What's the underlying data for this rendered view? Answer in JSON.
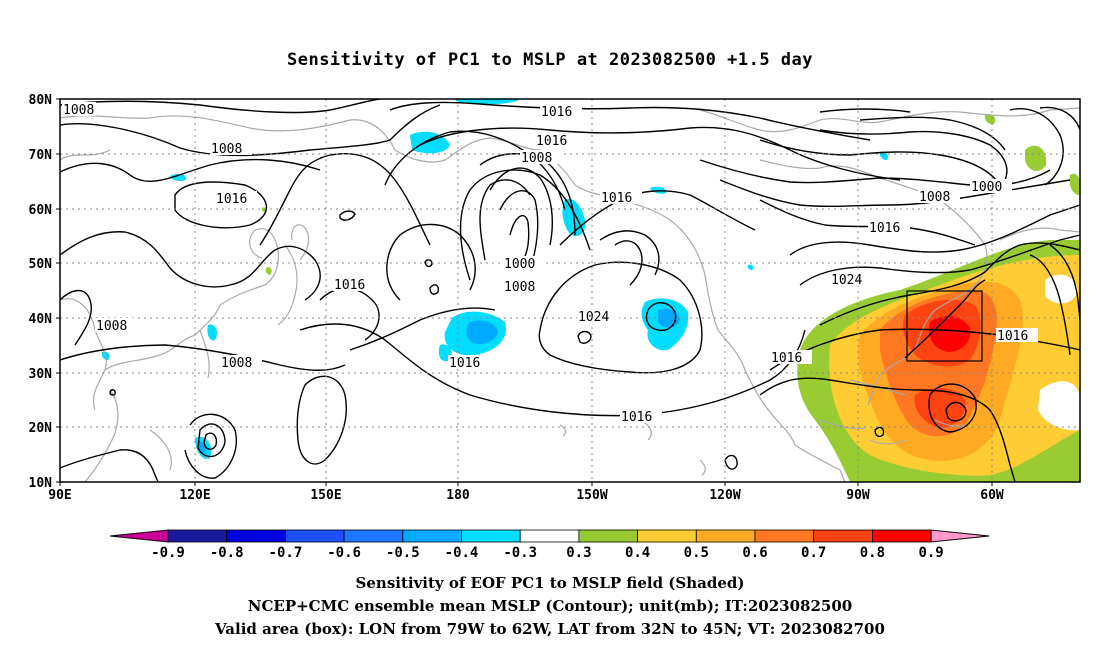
{
  "title": "Sensitivity of PC1 to MSLP at 2023082500 +1.5 day",
  "lat_labels": [
    "80N",
    "70N",
    "60N",
    "50N",
    "40N",
    "30N",
    "20N",
    "10N"
  ],
  "lon_labels": [
    "90E",
    "120E",
    "150E",
    "180",
    "150W",
    "120W",
    "90W",
    "60W"
  ],
  "contour_labels": [
    "1008",
    "1016",
    "1016",
    "1016",
    "1008",
    "1016",
    "1008",
    "1000",
    "1008",
    "1016",
    "1016",
    "1024",
    "1016",
    "1008",
    "1016",
    "1000",
    "1008",
    "1016",
    "1024",
    "1016",
    "1016"
  ],
  "colorbar": {
    "labels": [
      "-0.9",
      "-0.8",
      "-0.7",
      "-0.6",
      "-0.5",
      "-0.4",
      "-0.3",
      "0.3",
      "0.4",
      "0.5",
      "0.6",
      "0.7",
      "0.8",
      "0.9"
    ],
    "colors": [
      "#1a1a9c",
      "#0000e0",
      "#1e50ff",
      "#1e78ff",
      "#00aaff",
      "#00ddff",
      "#ffffff",
      "#99cc33",
      "#ffcc33",
      "#ffaa22",
      "#ff7722",
      "#ff4411",
      "#ff0000"
    ],
    "left_tip": "#cc0099",
    "right_tip": "#ff99cc"
  },
  "footer": {
    "line1": "Sensitivity of EOF PC1 to MSLP field (Shaded)",
    "line2": "NCEP+CMC ensemble mean MSLP (Contour); unit(mb); IT:2023082500",
    "line3": "Valid area (box): LON from 79W to 62W, LAT from 32N to 45N; VT: 2023082700"
  }
}
